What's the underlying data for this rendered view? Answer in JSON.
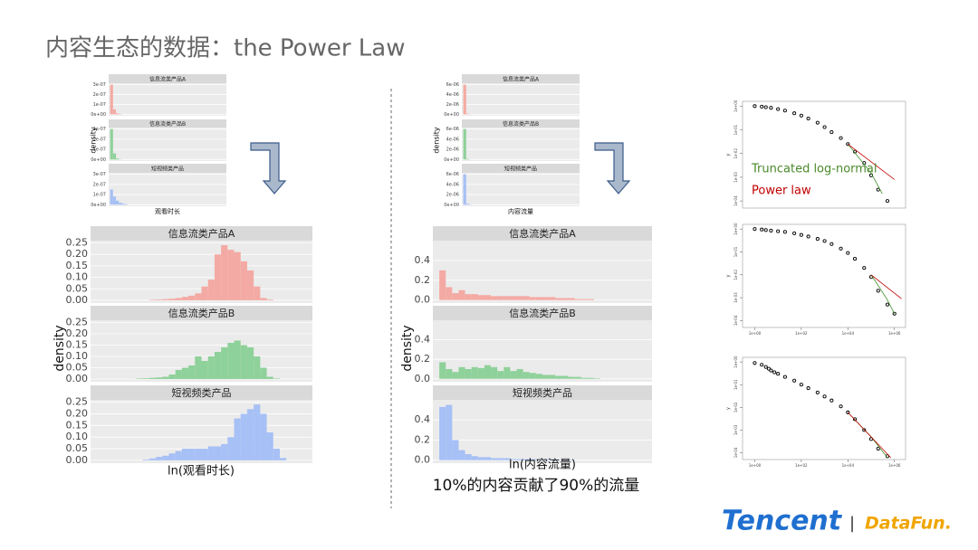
{
  "slide": {
    "title": "内容生态的数据：the Power Law",
    "caption": "10%的内容贡献了90%的流量",
    "logo_tencent": "Tencent",
    "logo_separator": "|",
    "logo_datafun": "DataFun."
  },
  "chart_data": [
    {
      "type": "histogram",
      "ylabel": "density",
      "xlabel": "观看时长",
      "xlim": [
        -0.5,
        40
      ],
      "ylim": [
        -1.5e-08,
        3.15e-07
      ],
      "yticks": [
        {
          "value": 0,
          "label": "0e+00"
        },
        {
          "value": 1e-07,
          "label": "1e-07"
        },
        {
          "value": 2e-07,
          "label": "2e-07"
        },
        {
          "value": 3e-07,
          "label": "3e-07"
        }
      ],
      "bins": [
        0,
        1,
        2,
        3,
        4,
        5,
        6,
        7,
        8,
        9,
        10
      ],
      "facets": [
        {
          "title": "信息流类产品A",
          "color": "#f4aaa4",
          "values": [
            3e-07,
            5e-08,
            1e-08,
            3e-09,
            0,
            0,
            0,
            0,
            0,
            0
          ]
        },
        {
          "title": "信息流类产品B",
          "color": "#8fd19a",
          "values": [
            3e-07,
            6e-08,
            1e-08,
            2e-09,
            0,
            0,
            0,
            0,
            0,
            0
          ]
        },
        {
          "title": "短视频类产品",
          "color": "#a7c0f5",
          "values": [
            1.5e-07,
            8e-08,
            4e-08,
            2e-08,
            1e-08,
            5e-09,
            0,
            0,
            0,
            0
          ]
        }
      ]
    },
    {
      "type": "histogram",
      "ylabel": "density",
      "xlabel": "ln(观看时长)",
      "xlim": [
        -0.5,
        16.5
      ],
      "ylim": [
        -0.012,
        0.26
      ],
      "yticks": [
        {
          "value": 0,
          "label": "0.00"
        },
        {
          "value": 0.05,
          "label": "0.05"
        },
        {
          "value": 0.1,
          "label": "0.10"
        },
        {
          "value": 0.15,
          "label": "0.15"
        },
        {
          "value": 0.2,
          "label": "0.20"
        },
        {
          "value": 0.25,
          "label": "0.25"
        }
      ],
      "bins": [
        0,
        0.5,
        1,
        1.5,
        2,
        2.5,
        3,
        3.5,
        4,
        4.5,
        5,
        5.5,
        6,
        6.5,
        7,
        7.5,
        8,
        8.5,
        9,
        9.5,
        10,
        10.5,
        11,
        11.5,
        12,
        12.5,
        13,
        13.5,
        14,
        14.5,
        15
      ],
      "facets": [
        {
          "title": "信息流类产品A",
          "color": "#f4aaa4",
          "values": [
            0,
            0,
            0,
            0,
            0,
            0,
            0,
            0,
            0.002,
            0.003,
            0.005,
            0.007,
            0.01,
            0.015,
            0.02,
            0.03,
            0.06,
            0.09,
            0.2,
            0.24,
            0.22,
            0.21,
            0.17,
            0.13,
            0.06,
            0.01,
            0.003,
            0,
            0,
            0
          ]
        },
        {
          "title": "信息流类产品B",
          "color": "#8fd19a",
          "values": [
            0,
            0,
            0,
            0,
            0,
            0,
            0.002,
            0.003,
            0.005,
            0.007,
            0.01,
            0.02,
            0.04,
            0.05,
            0.06,
            0.1,
            0.08,
            0.1,
            0.12,
            0.14,
            0.16,
            0.17,
            0.15,
            0.14,
            0.1,
            0.05,
            0.01,
            0.002,
            0,
            0
          ]
        },
        {
          "title": "短视频类产品",
          "color": "#a7c0f5",
          "values": [
            0,
            0,
            0,
            0,
            0,
            0,
            0,
            0.003,
            0.008,
            0.015,
            0.02,
            0.03,
            0.04,
            0.05,
            0.05,
            0.05,
            0.05,
            0.06,
            0.06,
            0.07,
            0.1,
            0.18,
            0.2,
            0.22,
            0.24,
            0.2,
            0.12,
            0.05,
            0.01,
            0
          ]
        }
      ]
    },
    {
      "type": "histogram",
      "ylabel": "density",
      "xlabel": "内容流量",
      "xlim": [
        -0.5,
        40
      ],
      "ylim": [
        -3e-07,
        6.3e-06
      ],
      "yticks": [
        {
          "value": 0,
          "label": "0e+00"
        },
        {
          "value": 2e-06,
          "label": "2e-06"
        },
        {
          "value": 4e-06,
          "label": "4e-06"
        },
        {
          "value": 6e-06,
          "label": "6e-06"
        }
      ],
      "bins": [
        0,
        1,
        2,
        3,
        4,
        5,
        6,
        7,
        8,
        9,
        10
      ],
      "facets": [
        {
          "title": "信息流类产品A",
          "color": "#f4aaa4",
          "values": [
            6e-06,
            1e-07,
            2e-08,
            0,
            0,
            0,
            0,
            0,
            0,
            0
          ]
        },
        {
          "title": "信息流类产品B",
          "color": "#8fd19a",
          "values": [
            6e-06,
            1e-07,
            2e-08,
            0,
            0,
            0,
            0,
            0,
            0,
            0
          ]
        },
        {
          "title": "短视频类产品",
          "color": "#a7c0f5",
          "values": [
            6e-06,
            2e-07,
            5e-08,
            0,
            0,
            0,
            0,
            0,
            0,
            0
          ]
        }
      ]
    },
    {
      "type": "histogram",
      "ylabel": "density",
      "xlabel": "ln(内容流量)",
      "xlim": [
        -0.5,
        16.5
      ],
      "ylim": [
        -0.03,
        0.6
      ],
      "yticks": [
        {
          "value": 0,
          "label": "0.0"
        },
        {
          "value": 0.2,
          "label": "0.2"
        },
        {
          "value": 0.4,
          "label": "0.4"
        }
      ],
      "bins": [
        0,
        0.5,
        1,
        1.5,
        2,
        2.5,
        3,
        3.5,
        4,
        4.5,
        5,
        5.5,
        6,
        6.5,
        7,
        7.5,
        8,
        8.5,
        9,
        9.5,
        10,
        10.5,
        11,
        11.5,
        12,
        12.5,
        13,
        13.5,
        14,
        14.5,
        15
      ],
      "facets": [
        {
          "title": "信息流类产品A",
          "color": "#f4aaa4",
          "values": [
            0.3,
            0.13,
            0.07,
            0.1,
            0.06,
            0.06,
            0.05,
            0.05,
            0.04,
            0.04,
            0.04,
            0.04,
            0.04,
            0.04,
            0.03,
            0.03,
            0.03,
            0.03,
            0.02,
            0.02,
            0.02,
            0.01,
            0.01,
            0.01,
            0,
            0,
            0,
            0,
            0,
            0
          ]
        },
        {
          "title": "信息流类产品B",
          "color": "#8fd19a",
          "values": [
            0.17,
            0.1,
            0.07,
            0.12,
            0.1,
            0.12,
            0.11,
            0.14,
            0.12,
            0.08,
            0.12,
            0.08,
            0.1,
            0.07,
            0.06,
            0.05,
            0.04,
            0.04,
            0.03,
            0.03,
            0.02,
            0.02,
            0.01,
            0.01,
            0.005,
            0,
            0,
            0,
            0,
            0
          ]
        },
        {
          "title": "短视频类产品",
          "color": "#a7c0f5",
          "values": [
            0.53,
            0.55,
            0.2,
            0.1,
            0.06,
            0.04,
            0.03,
            0.03,
            0.02,
            0.02,
            0.02,
            0.01,
            0.01,
            0.01,
            0.01,
            0.01,
            0.01,
            0.01,
            0.005,
            0.005,
            0.005,
            0,
            0,
            0,
            0,
            0,
            0,
            0,
            0,
            0
          ]
        }
      ]
    },
    {
      "type": "scatter",
      "log": true,
      "ylabel": "y",
      "xlim": [
        0.3,
        3000000
      ],
      "ylim": [
        5e-05,
        1.6
      ],
      "yticks": [
        {
          "value": 1,
          "label": "1e+00"
        },
        {
          "value": 0.1,
          "label": "1e-01"
        },
        {
          "value": 0.01,
          "label": "1e-02"
        },
        {
          "value": 0.001,
          "label": "1e-03"
        },
        {
          "value": 0.0001,
          "label": "1e-04"
        }
      ],
      "points": {
        "x": [
          1,
          2,
          3,
          5,
          10,
          20,
          50,
          100,
          200,
          500,
          1000,
          2000,
          5000,
          10000,
          20000,
          50000,
          100000,
          200000,
          500000
        ],
        "values": [
          1,
          0.95,
          0.9,
          0.85,
          0.75,
          0.65,
          0.5,
          0.4,
          0.3,
          0.2,
          0.13,
          0.08,
          0.045,
          0.025,
          0.012,
          0.004,
          0.0012,
          0.0003,
          0.0001
        ]
      },
      "fits": [
        {
          "color": "#3f8f2a",
          "x": [
            10000,
            100000,
            300000
          ],
          "values": [
            0.025,
            0.0015,
            0.0002
          ]
        },
        {
          "color": "#c00000",
          "x": [
            10000,
            1000000
          ],
          "values": [
            0.025,
            0.0008
          ]
        }
      ],
      "annotations": [
        {
          "text": "Truncated log-normal",
          "color": "#4a8a2a"
        },
        {
          "text": "Power law",
          "color": "#c00000"
        }
      ]
    },
    {
      "type": "scatter",
      "log": true,
      "ylabel": "y",
      "xlim": [
        0.3,
        3000000
      ],
      "ylim": [
        5e-05,
        1.6
      ],
      "xticks": [
        {
          "value": 1,
          "label": "1e+00"
        },
        {
          "value": 100,
          "label": "1e+02"
        },
        {
          "value": 10000,
          "label": "1e+04"
        },
        {
          "value": 1000000,
          "label": "1e+06"
        }
      ],
      "yticks": [
        {
          "value": 1,
          "label": "1e+00"
        },
        {
          "value": 0.1,
          "label": "1e-01"
        },
        {
          "value": 0.01,
          "label": "1e-02"
        },
        {
          "value": 0.001,
          "label": "1e-03"
        },
        {
          "value": 0.0001,
          "label": "1e-04"
        }
      ],
      "points": {
        "x": [
          1,
          2,
          3,
          5,
          10,
          20,
          50,
          100,
          200,
          500,
          1000,
          2000,
          5000,
          10000,
          20000,
          50000,
          100000,
          200000,
          500000,
          1000000
        ],
        "values": [
          1,
          0.95,
          0.9,
          0.85,
          0.8,
          0.75,
          0.65,
          0.55,
          0.47,
          0.37,
          0.3,
          0.22,
          0.14,
          0.09,
          0.05,
          0.02,
          0.008,
          0.002,
          0.0005,
          0.0002
        ]
      },
      "fits": [
        {
          "color": "#3f8f2a",
          "x": [
            100000,
            500000,
            1000000
          ],
          "values": [
            0.01,
            0.0008,
            0.0002
          ]
        },
        {
          "color": "#c00000",
          "x": [
            100000,
            2000000
          ],
          "values": [
            0.01,
            0.0009
          ]
        }
      ]
    },
    {
      "type": "scatter",
      "log": true,
      "ylabel": "y",
      "xlim": [
        0.3,
        3000000
      ],
      "ylim": [
        5e-05,
        1.6
      ],
      "xticks": [
        {
          "value": 1,
          "label": "1e+00"
        },
        {
          "value": 100,
          "label": "1e+02"
        },
        {
          "value": 10000,
          "label": "1e+04"
        },
        {
          "value": 1000000,
          "label": "1e+06"
        }
      ],
      "yticks": [
        {
          "value": 1,
          "label": "1e+00"
        },
        {
          "value": 0.1,
          "label": "1e-01"
        },
        {
          "value": 0.01,
          "label": "1e-02"
        },
        {
          "value": 0.001,
          "label": "1e-03"
        },
        {
          "value": 0.0001,
          "label": "1e-04"
        }
      ],
      "points": {
        "x": [
          1,
          2,
          3,
          4,
          5,
          7,
          10,
          20,
          50,
          100,
          200,
          500,
          1000,
          2000,
          5000,
          10000,
          20000,
          50000,
          100000,
          200000,
          500000
        ],
        "values": [
          0.9,
          0.75,
          0.6,
          0.5,
          0.42,
          0.35,
          0.3,
          0.22,
          0.15,
          0.1,
          0.07,
          0.045,
          0.03,
          0.02,
          0.011,
          0.006,
          0.003,
          0.001,
          0.0004,
          0.00015,
          7e-05
        ]
      },
      "fits": [
        {
          "color": "#3f8f2a",
          "x": [
            10000,
            100000,
            500000
          ],
          "values": [
            0.006,
            0.0005,
            6e-05
          ]
        },
        {
          "color": "#c00000",
          "x": [
            10000,
            700000
          ],
          "values": [
            0.006,
            6e-05
          ]
        }
      ]
    }
  ]
}
